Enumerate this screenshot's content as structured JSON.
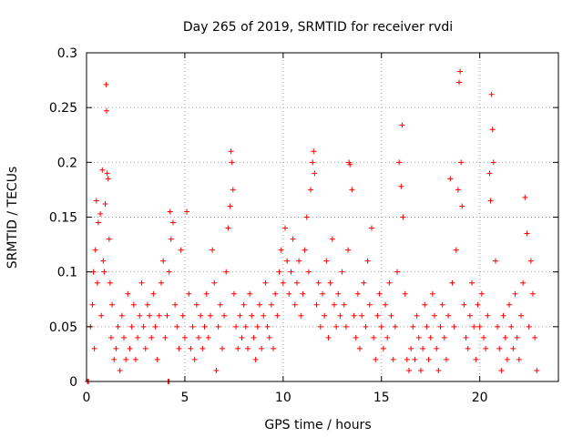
{
  "chart_data": {
    "type": "scatter",
    "title": "Day 265 of 2019, SRMTID for receiver rvdi",
    "xlabel": "GPS time / hours",
    "ylabel": "SRMTID / TECUs",
    "xlim": [
      0,
      24
    ],
    "ylim": [
      0,
      0.3
    ],
    "xticks": [
      0,
      5,
      10,
      15,
      20
    ],
    "xtick_labels": [
      "0",
      "5",
      "10",
      "15",
      "20"
    ],
    "yticks": [
      0,
      0.05,
      0.1,
      0.15,
      0.2,
      0.25,
      0.3
    ],
    "ytick_labels": [
      "0",
      "0.05",
      "0.1",
      "0.15",
      "0.2",
      "0.25",
      "0.3"
    ],
    "grid": true,
    "marker": "+",
    "color": "#ff0000",
    "series": [
      {
        "name": "SRMTID",
        "points": [
          [
            0.05,
            0.0
          ],
          [
            0.1,
            0.0
          ],
          [
            4.15,
            0.0
          ],
          [
            4.2,
            0.0
          ],
          [
            0.2,
            0.05
          ],
          [
            0.3,
            0.07
          ],
          [
            0.35,
            0.1
          ],
          [
            0.4,
            0.03
          ],
          [
            0.45,
            0.12
          ],
          [
            0.5,
            0.165
          ],
          [
            0.55,
            0.09
          ],
          [
            0.6,
            0.145
          ],
          [
            0.7,
            0.153
          ],
          [
            0.75,
            0.06
          ],
          [
            0.8,
            0.193
          ],
          [
            0.85,
            0.11
          ],
          [
            0.9,
            0.1
          ],
          [
            0.95,
            0.162
          ],
          [
            1.0,
            0.271
          ],
          [
            1.02,
            0.247
          ],
          [
            1.05,
            0.19
          ],
          [
            1.1,
            0.185
          ],
          [
            1.15,
            0.13
          ],
          [
            1.2,
            0.09
          ],
          [
            1.25,
            0.04
          ],
          [
            1.3,
            0.07
          ],
          [
            1.4,
            0.02
          ],
          [
            1.5,
            0.03
          ],
          [
            1.6,
            0.05
          ],
          [
            1.7,
            0.01
          ],
          [
            1.8,
            0.06
          ],
          [
            1.9,
            0.04
          ],
          [
            2.0,
            0.02
          ],
          [
            2.1,
            0.08
          ],
          [
            2.2,
            0.03
          ],
          [
            2.3,
            0.05
          ],
          [
            2.4,
            0.07
          ],
          [
            2.5,
            0.02
          ],
          [
            2.6,
            0.04
          ],
          [
            2.7,
            0.06
          ],
          [
            2.8,
            0.09
          ],
          [
            2.9,
            0.05
          ],
          [
            3.0,
            0.03
          ],
          [
            3.1,
            0.07
          ],
          [
            3.2,
            0.06
          ],
          [
            3.3,
            0.04
          ],
          [
            3.4,
            0.08
          ],
          [
            3.5,
            0.05
          ],
          [
            3.6,
            0.02
          ],
          [
            3.7,
            0.06
          ],
          [
            3.8,
            0.09
          ],
          [
            3.9,
            0.11
          ],
          [
            4.0,
            0.04
          ],
          [
            4.1,
            0.06
          ],
          [
            4.2,
            0.1
          ],
          [
            4.25,
            0.155
          ],
          [
            4.3,
            0.13
          ],
          [
            4.4,
            0.145
          ],
          [
            4.5,
            0.07
          ],
          [
            4.6,
            0.05
          ],
          [
            4.7,
            0.03
          ],
          [
            4.8,
            0.12
          ],
          [
            4.9,
            0.06
          ],
          [
            5.0,
            0.04
          ],
          [
            5.1,
            0.155
          ],
          [
            5.2,
            0.08
          ],
          [
            5.3,
            0.03
          ],
          [
            5.4,
            0.05
          ],
          [
            5.5,
            0.02
          ],
          [
            5.6,
            0.07
          ],
          [
            5.7,
            0.04
          ],
          [
            5.8,
            0.06
          ],
          [
            5.9,
            0.03
          ],
          [
            6.0,
            0.05
          ],
          [
            6.1,
            0.08
          ],
          [
            6.2,
            0.04
          ],
          [
            6.3,
            0.06
          ],
          [
            6.4,
            0.12
          ],
          [
            6.5,
            0.09
          ],
          [
            6.6,
            0.01
          ],
          [
            6.7,
            0.05
          ],
          [
            6.8,
            0.07
          ],
          [
            6.9,
            0.03
          ],
          [
            7.0,
            0.06
          ],
          [
            7.1,
            0.1
          ],
          [
            7.2,
            0.14
          ],
          [
            7.3,
            0.16
          ],
          [
            7.35,
            0.21
          ],
          [
            7.4,
            0.2
          ],
          [
            7.45,
            0.175
          ],
          [
            7.5,
            0.08
          ],
          [
            7.6,
            0.05
          ],
          [
            7.7,
            0.03
          ],
          [
            7.8,
            0.06
          ],
          [
            7.9,
            0.04
          ],
          [
            8.0,
            0.07
          ],
          [
            8.1,
            0.05
          ],
          [
            8.2,
            0.03
          ],
          [
            8.3,
            0.08
          ],
          [
            8.4,
            0.06
          ],
          [
            8.5,
            0.04
          ],
          [
            8.6,
            0.02
          ],
          [
            8.7,
            0.05
          ],
          [
            8.8,
            0.07
          ],
          [
            8.9,
            0.03
          ],
          [
            9.0,
            0.06
          ],
          [
            9.1,
            0.09
          ],
          [
            9.2,
            0.05
          ],
          [
            9.3,
            0.04
          ],
          [
            9.4,
            0.07
          ],
          [
            9.5,
            0.03
          ],
          [
            9.6,
            0.08
          ],
          [
            9.7,
            0.06
          ],
          [
            9.8,
            0.1
          ],
          [
            9.9,
            0.12
          ],
          [
            10.0,
            0.09
          ],
          [
            10.1,
            0.14
          ],
          [
            10.2,
            0.11
          ],
          [
            10.3,
            0.08
          ],
          [
            10.4,
            0.1
          ],
          [
            10.5,
            0.13
          ],
          [
            10.6,
            0.07
          ],
          [
            10.7,
            0.09
          ],
          [
            10.8,
            0.11
          ],
          [
            10.9,
            0.06
          ],
          [
            11.0,
            0.08
          ],
          [
            11.1,
            0.12
          ],
          [
            11.2,
            0.15
          ],
          [
            11.3,
            0.1
          ],
          [
            11.4,
            0.175
          ],
          [
            11.5,
            0.2
          ],
          [
            11.55,
            0.21
          ],
          [
            11.6,
            0.19
          ],
          [
            11.7,
            0.07
          ],
          [
            11.8,
            0.09
          ],
          [
            11.9,
            0.05
          ],
          [
            12.0,
            0.08
          ],
          [
            12.1,
            0.06
          ],
          [
            12.2,
            0.11
          ],
          [
            12.3,
            0.04
          ],
          [
            12.4,
            0.09
          ],
          [
            12.5,
            0.13
          ],
          [
            12.6,
            0.07
          ],
          [
            12.7,
            0.05
          ],
          [
            12.8,
            0.08
          ],
          [
            12.9,
            0.06
          ],
          [
            13.0,
            0.1
          ],
          [
            13.1,
            0.07
          ],
          [
            13.2,
            0.05
          ],
          [
            13.3,
            0.12
          ],
          [
            13.35,
            0.2
          ],
          [
            13.4,
            0.198
          ],
          [
            13.5,
            0.175
          ],
          [
            13.6,
            0.06
          ],
          [
            13.7,
            0.04
          ],
          [
            13.8,
            0.08
          ],
          [
            13.9,
            0.03
          ],
          [
            14.0,
            0.06
          ],
          [
            14.1,
            0.09
          ],
          [
            14.2,
            0.05
          ],
          [
            14.3,
            0.11
          ],
          [
            14.4,
            0.07
          ],
          [
            14.5,
            0.14
          ],
          [
            14.6,
            0.04
          ],
          [
            14.7,
            0.02
          ],
          [
            14.8,
            0.06
          ],
          [
            14.9,
            0.08
          ],
          [
            15.0,
            0.05
          ],
          [
            15.1,
            0.03
          ],
          [
            15.2,
            0.07
          ],
          [
            15.3,
            0.04
          ],
          [
            15.4,
            0.09
          ],
          [
            15.5,
            0.06
          ],
          [
            15.6,
            0.02
          ],
          [
            15.7,
            0.05
          ],
          [
            15.8,
            0.1
          ],
          [
            15.9,
            0.2
          ],
          [
            16.0,
            0.178
          ],
          [
            16.05,
            0.234
          ],
          [
            16.1,
            0.15
          ],
          [
            16.2,
            0.08
          ],
          [
            16.3,
            0.02
          ],
          [
            16.4,
            0.01
          ],
          [
            16.5,
            0.03
          ],
          [
            16.6,
            0.05
          ],
          [
            16.7,
            0.02
          ],
          [
            16.8,
            0.06
          ],
          [
            16.9,
            0.04
          ],
          [
            17.0,
            0.01
          ],
          [
            17.1,
            0.03
          ],
          [
            17.2,
            0.07
          ],
          [
            17.3,
            0.05
          ],
          [
            17.4,
            0.02
          ],
          [
            17.5,
            0.04
          ],
          [
            17.6,
            0.08
          ],
          [
            17.7,
            0.06
          ],
          [
            17.8,
            0.03
          ],
          [
            17.9,
            0.01
          ],
          [
            18.0,
            0.05
          ],
          [
            18.1,
            0.07
          ],
          [
            18.2,
            0.04
          ],
          [
            18.3,
            0.02
          ],
          [
            18.4,
            0.06
          ],
          [
            18.5,
            0.185
          ],
          [
            18.6,
            0.09
          ],
          [
            18.7,
            0.05
          ],
          [
            18.8,
            0.12
          ],
          [
            18.9,
            0.175
          ],
          [
            18.95,
            0.273
          ],
          [
            19.0,
            0.283
          ],
          [
            19.05,
            0.2
          ],
          [
            19.1,
            0.16
          ],
          [
            19.2,
            0.07
          ],
          [
            19.3,
            0.04
          ],
          [
            19.4,
            0.03
          ],
          [
            19.5,
            0.06
          ],
          [
            19.6,
            0.09
          ],
          [
            19.7,
            0.05
          ],
          [
            19.8,
            0.02
          ],
          [
            19.9,
            0.07
          ],
          [
            20.0,
            0.05
          ],
          [
            20.1,
            0.08
          ],
          [
            20.2,
            0.04
          ],
          [
            20.3,
            0.03
          ],
          [
            20.4,
            0.06
          ],
          [
            20.5,
            0.19
          ],
          [
            20.55,
            0.165
          ],
          [
            20.6,
            0.262
          ],
          [
            20.65,
            0.23
          ],
          [
            20.7,
            0.2
          ],
          [
            20.8,
            0.11
          ],
          [
            20.9,
            0.05
          ],
          [
            21.0,
            0.03
          ],
          [
            21.1,
            0.01
          ],
          [
            21.2,
            0.06
          ],
          [
            21.3,
            0.04
          ],
          [
            21.4,
            0.02
          ],
          [
            21.5,
            0.07
          ],
          [
            21.6,
            0.05
          ],
          [
            21.7,
            0.03
          ],
          [
            21.8,
            0.08
          ],
          [
            21.9,
            0.04
          ],
          [
            22.0,
            0.02
          ],
          [
            22.1,
            0.06
          ],
          [
            22.2,
            0.09
          ],
          [
            22.3,
            0.168
          ],
          [
            22.4,
            0.135
          ],
          [
            22.5,
            0.05
          ],
          [
            22.6,
            0.11
          ],
          [
            22.7,
            0.08
          ],
          [
            22.8,
            0.04
          ],
          [
            22.9,
            0.01
          ]
        ]
      }
    ]
  }
}
